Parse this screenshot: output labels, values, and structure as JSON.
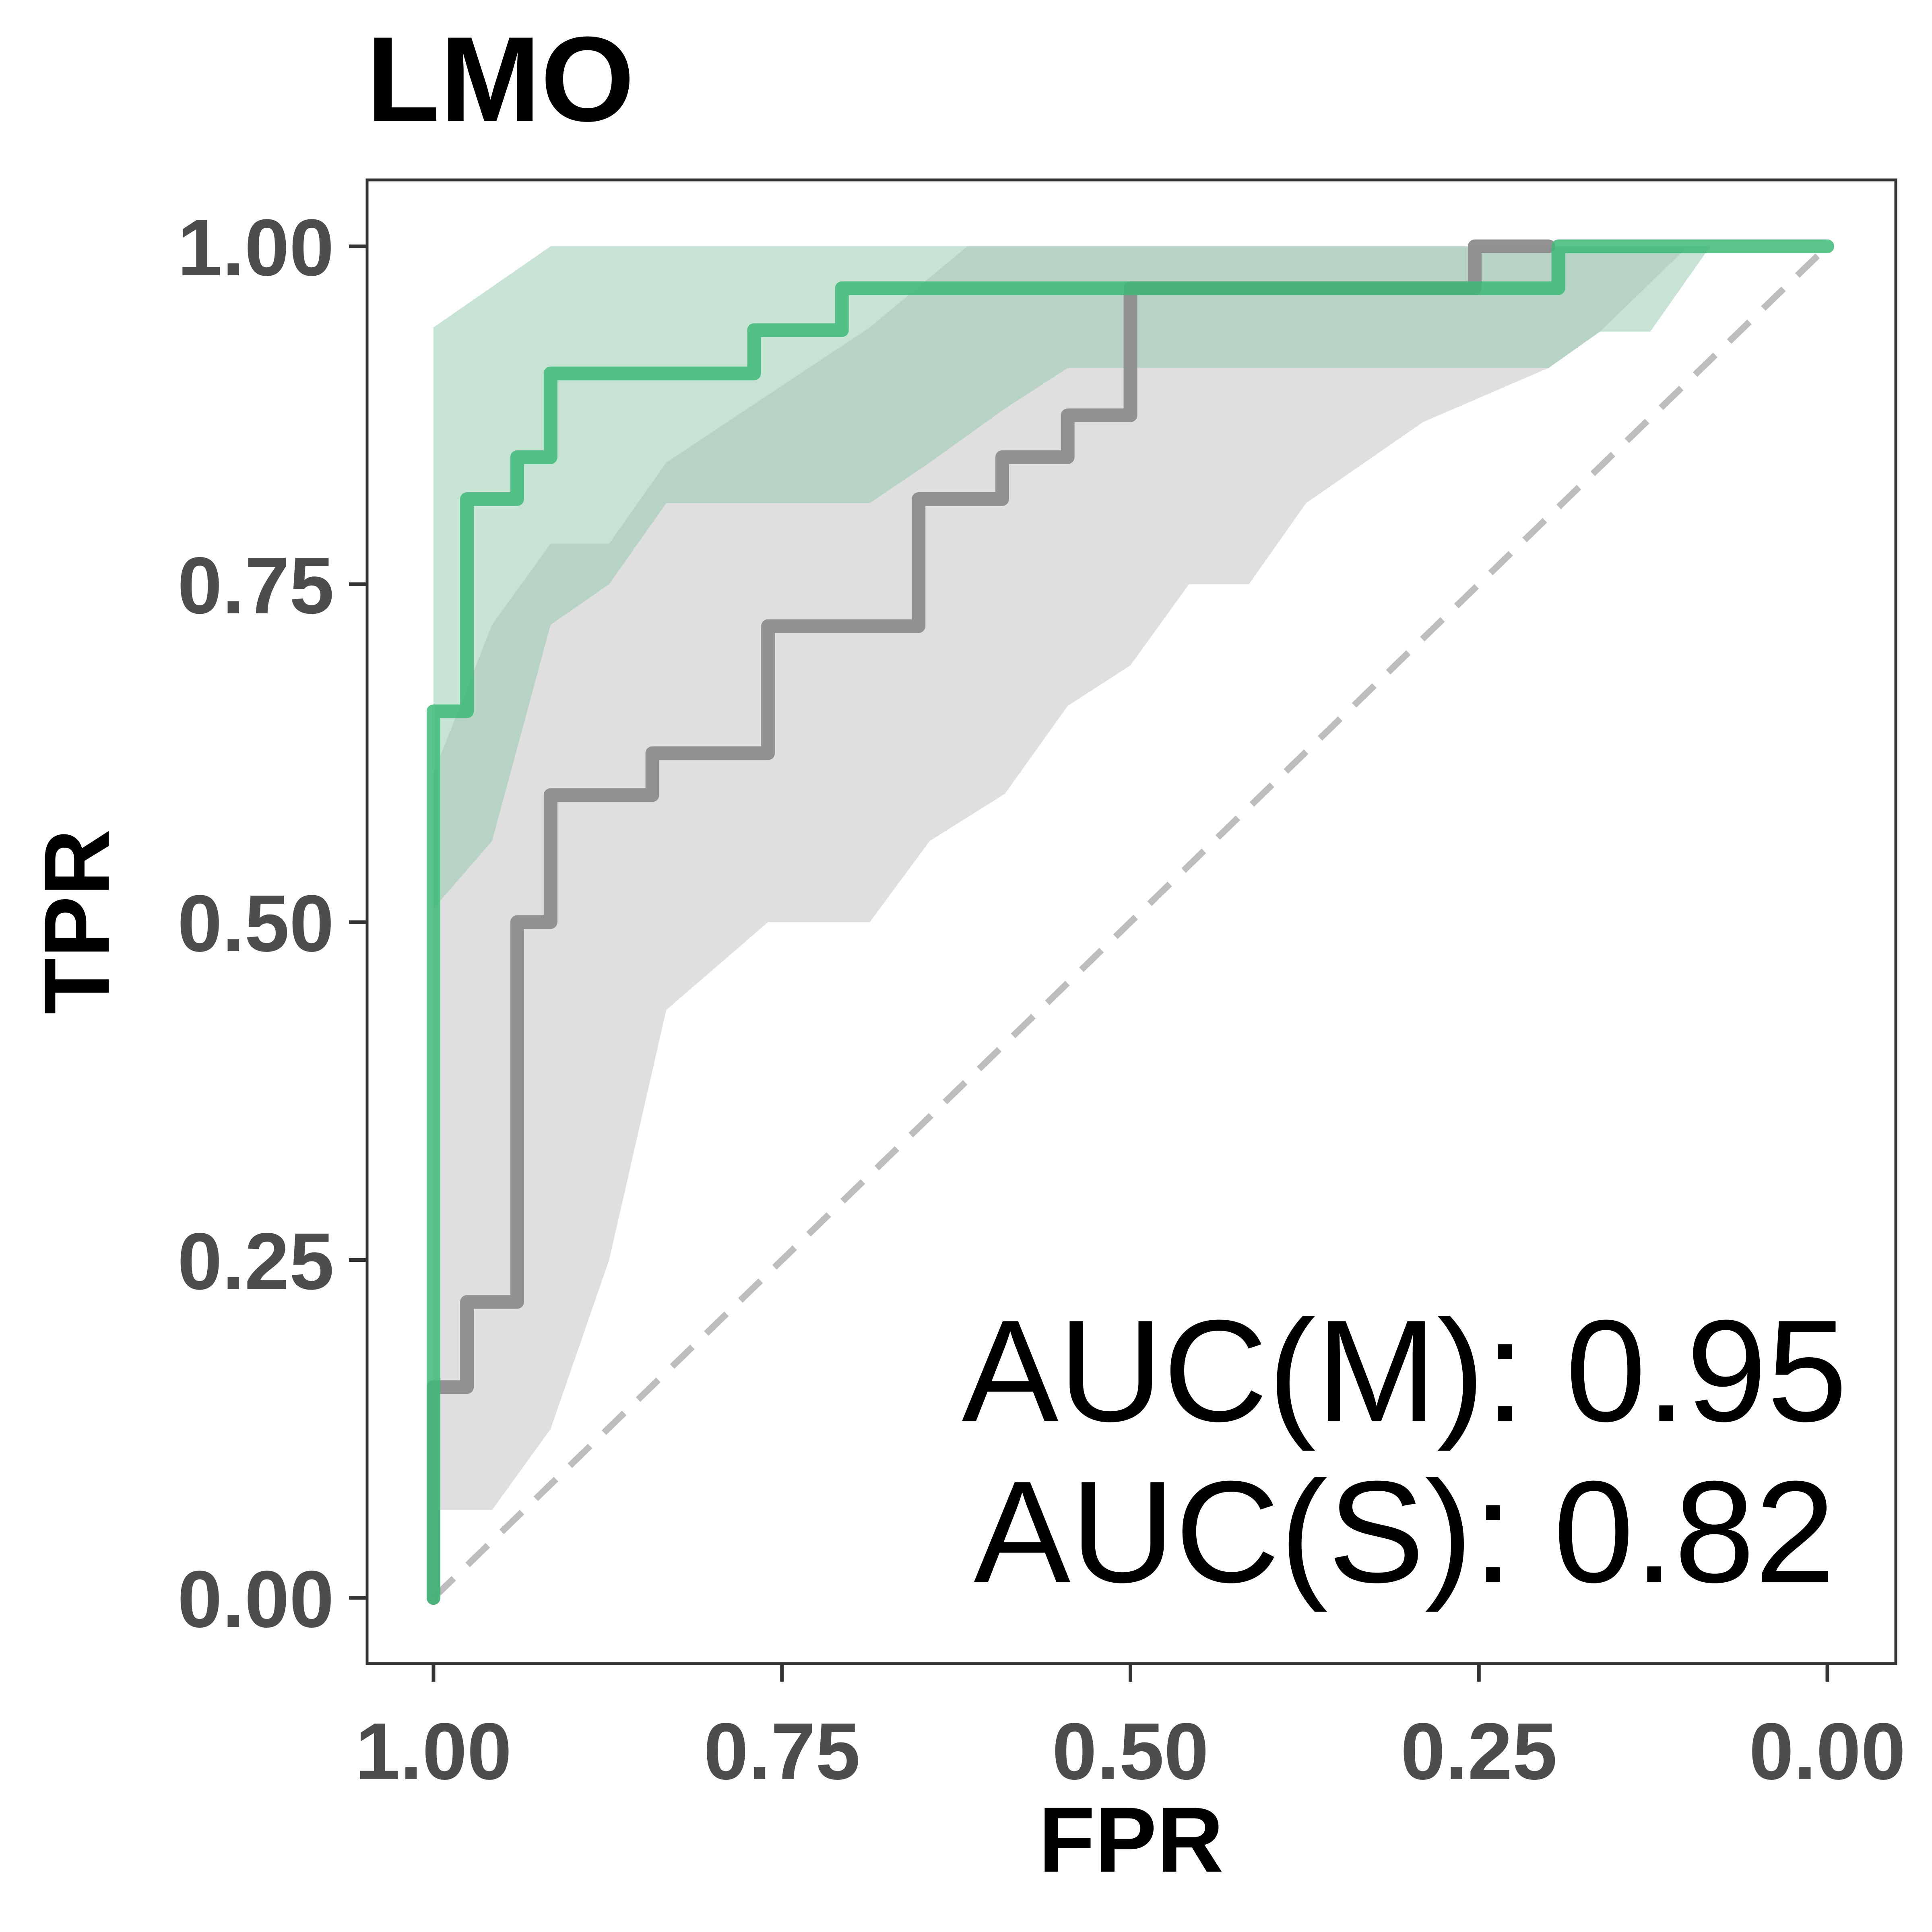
{
  "chart_data": {
    "type": "line",
    "title": "LMO",
    "xlabel": "FPR",
    "ylabel": "TPR",
    "xlim": [
      1.0,
      0.0
    ],
    "ylim": [
      0.0,
      1.0
    ],
    "x_reversed": true,
    "grid": false,
    "xticks": [
      {
        "value": 1.0,
        "label": "1.00"
      },
      {
        "value": 0.75,
        "label": "0.75"
      },
      {
        "value": 0.5,
        "label": "0.50"
      },
      {
        "value": 0.25,
        "label": "0.25"
      },
      {
        "value": 0.0,
        "label": "0.00"
      }
    ],
    "yticks": [
      {
        "value": 0.0,
        "label": "0.00"
      },
      {
        "value": 0.25,
        "label": "0.25"
      },
      {
        "value": 0.5,
        "label": "0.50"
      },
      {
        "value": 0.75,
        "label": "0.75"
      },
      {
        "value": 1.0,
        "label": "1.00"
      }
    ],
    "annotations": [
      "AUC(M): 0.95",
      "AUC(S): 0.82"
    ],
    "reference_line": {
      "points": [
        [
          1.0,
          0.0
        ],
        [
          0.0,
          1.0
        ]
      ],
      "color": "#bdbdbd",
      "style": "dashed"
    },
    "series": [
      {
        "color": "#8c8c8c",
        "band_color": "#bfbfbf",
        "points": [
          [
            1.0,
            0.0
          ],
          [
            1.0,
            0.156
          ],
          [
            0.976,
            0.156
          ],
          [
            0.976,
            0.219
          ],
          [
            0.94,
            0.219
          ],
          [
            0.94,
            0.5
          ],
          [
            0.916,
            0.5
          ],
          [
            0.916,
            0.594
          ],
          [
            0.843,
            0.594
          ],
          [
            0.843,
            0.625
          ],
          [
            0.76,
            0.625
          ],
          [
            0.76,
            0.719
          ],
          [
            0.652,
            0.719
          ],
          [
            0.652,
            0.813
          ],
          [
            0.592,
            0.813
          ],
          [
            0.592,
            0.844
          ],
          [
            0.545,
            0.844
          ],
          [
            0.545,
            0.875
          ],
          [
            0.5,
            0.875
          ],
          [
            0.5,
            0.969
          ],
          [
            0.253,
            0.969
          ],
          [
            0.253,
            1.0
          ],
          [
            0.2,
            1.0
          ]
        ],
        "band_upper": [
          [
            1.0,
            0.61
          ],
          [
            0.958,
            0.72
          ],
          [
            0.916,
            0.78
          ],
          [
            0.874,
            0.78
          ],
          [
            0.833,
            0.84
          ],
          [
            0.76,
            0.89
          ],
          [
            0.687,
            0.94
          ],
          [
            0.617,
            1.0
          ],
          [
            0.0,
            1.0
          ]
        ],
        "band_lower": [
          [
            1.0,
            0.065
          ],
          [
            0.958,
            0.065
          ],
          [
            0.916,
            0.125
          ],
          [
            0.874,
            0.25
          ],
          [
            0.833,
            0.435
          ],
          [
            0.76,
            0.5
          ],
          [
            0.687,
            0.5
          ],
          [
            0.644,
            0.56
          ],
          [
            0.59,
            0.595
          ],
          [
            0.545,
            0.66
          ],
          [
            0.5,
            0.69
          ],
          [
            0.458,
            0.75
          ],
          [
            0.415,
            0.75
          ],
          [
            0.374,
            0.81
          ],
          [
            0.29,
            0.87
          ],
          [
            0.2,
            0.91
          ],
          [
            0.163,
            0.937
          ],
          [
            0.1,
            1.0
          ]
        ]
      },
      {
        "color": "#3dba78",
        "band_color": "#8fc7a8",
        "points": [
          [
            1.0,
            0.0
          ],
          [
            1.0,
            0.656
          ],
          [
            0.976,
            0.656
          ],
          [
            0.976,
            0.813
          ],
          [
            0.94,
            0.813
          ],
          [
            0.94,
            0.844
          ],
          [
            0.916,
            0.844
          ],
          [
            0.916,
            0.906
          ],
          [
            0.77,
            0.906
          ],
          [
            0.77,
            0.938
          ],
          [
            0.707,
            0.938
          ],
          [
            0.707,
            0.969
          ],
          [
            0.193,
            0.969
          ],
          [
            0.193,
            1.0
          ],
          [
            0.0,
            1.0
          ]
        ],
        "band_upper": [
          [
            1.0,
            0.94
          ],
          [
            0.916,
            1.0
          ],
          [
            0.0,
            1.0
          ]
        ],
        "band_lower": [
          [
            1.0,
            0.51
          ],
          [
            0.958,
            0.56
          ],
          [
            0.916,
            0.72
          ],
          [
            0.874,
            0.75
          ],
          [
            0.833,
            0.81
          ],
          [
            0.76,
            0.81
          ],
          [
            0.687,
            0.81
          ],
          [
            0.644,
            0.84
          ],
          [
            0.59,
            0.88
          ],
          [
            0.545,
            0.91
          ],
          [
            0.5,
            0.91
          ],
          [
            0.458,
            0.91
          ],
          [
            0.415,
            0.91
          ],
          [
            0.29,
            0.91
          ],
          [
            0.2,
            0.91
          ],
          [
            0.163,
            0.937
          ],
          [
            0.127,
            0.937
          ],
          [
            0.084,
            1.0
          ]
        ]
      }
    ]
  }
}
